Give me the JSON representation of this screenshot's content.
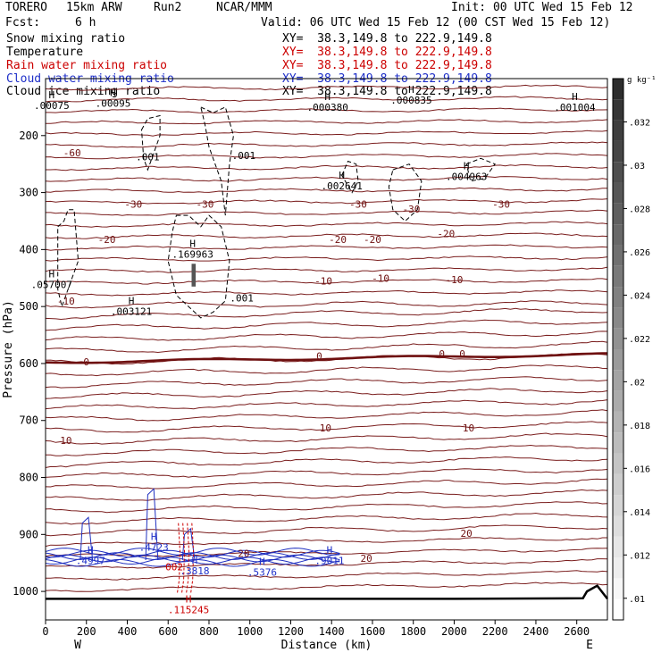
{
  "header": {
    "model": "TORERO",
    "resolution": "15km ARW",
    "run": "Run2",
    "org": "NCAR/MMM",
    "init": "Init: 00 UTC Wed 15 Feb 12",
    "fcst_label": "Fcst:",
    "fcst_value": "6 h",
    "valid": "Valid: 06 UTC Wed 15 Feb 12 (00 CST Wed 15 Feb 12)"
  },
  "fields": [
    {
      "label": "Snow mixing ratio",
      "color": "#000000",
      "xy": "XY=  38.3,149.8 to 222.9,149.8"
    },
    {
      "label": "Temperature",
      "color": "#cc0000",
      "xy": "XY=  38.3,149.8 to 222.9,149.8"
    },
    {
      "label": "Rain water mixing ratio",
      "color": "#cc0000",
      "xy": "XY=  38.3,149.8 to 222.9,149.8"
    },
    {
      "label": "Cloud water mixing ratio",
      "color": "#1e2fc8",
      "xy": "XY=  38.3,149.8 to 222.9,149.8"
    },
    {
      "label": "Cloud ice mixing ratio",
      "color": "#000000",
      "xy": "XY=  38.3,149.8 to 222.9,149.8"
    }
  ],
  "colorbar": {
    "unit": "g kg⁻¹",
    "ticks": [
      ".01",
      ".012",
      ".014",
      ".016",
      ".018",
      ".02",
      ".022",
      ".024",
      ".026",
      ".028",
      ".03",
      ".032"
    ],
    "values": [
      0.01,
      0.012,
      0.014,
      0.016,
      0.018,
      0.02,
      0.022,
      0.024,
      0.026,
      0.028,
      0.03,
      0.032
    ],
    "range": [
      0.009,
      0.034
    ]
  },
  "chart_data": {
    "type": "contour cross-section",
    "xlabel": "Distance (km)",
    "ylabel": "Pressure (hPa)",
    "xlim": [
      0,
      2750
    ],
    "x_ticks": [
      0,
      200,
      400,
      600,
      800,
      1000,
      1200,
      1400,
      1600,
      1800,
      2000,
      2200,
      2400,
      2600
    ],
    "ylim": [
      100,
      1050
    ],
    "y_ticks": [
      200,
      300,
      400,
      500,
      600,
      700,
      800,
      900,
      1000
    ],
    "y_tick_labels": [
      "200",
      "300",
      "400",
      "500",
      "600",
      "700",
      "800",
      "900",
      "1000"
    ],
    "y_scale": "linear",
    "x_ends": {
      "left": "W",
      "right": "E"
    },
    "temperature_contour_labels": [
      {
        "label": "-60",
        "x": 130,
        "p": 230
      },
      {
        "label": "-30",
        "x": 430,
        "p": 320
      },
      {
        "label": "-30",
        "x": 1530,
        "p": 320
      },
      {
        "label": "-30",
        "x": 1790,
        "p": 329
      },
      {
        "label": "-30",
        "x": 2230,
        "p": 320
      },
      {
        "label": "-30",
        "x": 780,
        "p": 320
      },
      {
        "label": "-20",
        "x": 300,
        "p": 382
      },
      {
        "label": "-20",
        "x": 1430,
        "p": 382
      },
      {
        "label": "-20",
        "x": 1600,
        "p": 382
      },
      {
        "label": "-20",
        "x": 1960,
        "p": 372
      },
      {
        "label": "-10",
        "x": 100,
        "p": 490
      },
      {
        "label": "-10",
        "x": 1360,
        "p": 455
      },
      {
        "label": "-10",
        "x": 1640,
        "p": 450
      },
      {
        "label": "-10",
        "x": 2000,
        "p": 453
      },
      {
        "label": "0",
        "x": 200,
        "p": 597
      },
      {
        "label": "0",
        "x": 1340,
        "p": 587
      },
      {
        "label": "0",
        "x": 1940,
        "p": 583
      },
      {
        "label": "0",
        "x": 2040,
        "p": 583
      },
      {
        "label": "10",
        "x": 100,
        "p": 735
      },
      {
        "label": "10",
        "x": 1370,
        "p": 713
      },
      {
        "label": "10",
        "x": 2070,
        "p": 713
      },
      {
        "label": "20",
        "x": 2060,
        "p": 898
      },
      {
        "label": "20",
        "x": 1570,
        "p": 942
      },
      {
        "label": "20",
        "x": 970,
        "p": 933
      }
    ],
    "maxima_labels": [
      {
        "label": "H",
        "value": ".00075",
        "x": 30,
        "p": 147,
        "field": "snow"
      },
      {
        "label": "H",
        "value": ".00095",
        "x": 330,
        "p": 143,
        "field": "snow"
      },
      {
        "label": "H",
        "value": ".000380",
        "x": 1380,
        "p": 150,
        "field": "snow"
      },
      {
        "label": "H",
        "value": ".000835",
        "x": 1790,
        "p": 138,
        "field": "snow"
      },
      {
        "label": "H",
        "value": ".001004",
        "x": 2590,
        "p": 150,
        "field": "snow"
      },
      {
        "label": "H",
        "value": ".002641",
        "x": 1450,
        "p": 288,
        "field": "snow"
      },
      {
        "label": "H",
        "value": ".004963",
        "x": 2060,
        "p": 272,
        "field": "snow"
      },
      {
        "label": "H",
        "value": ".169963",
        "x": 720,
        "p": 408,
        "field": "snow"
      },
      {
        "label": "H",
        "value": ".057007",
        "x": 30,
        "p": 461,
        "field": "snow"
      },
      {
        "label": "H",
        "value": ".003121",
        "x": 420,
        "p": 508,
        "field": "snow"
      },
      {
        "label": "",
        "value": ".001",
        "x": 500,
        "p": 237,
        "field": "snow"
      },
      {
        "label": "",
        "value": ".001",
        "x": 970,
        "p": 235,
        "field": "snow"
      },
      {
        "label": "",
        "value": ".001",
        "x": 960,
        "p": 485,
        "field": "snow"
      },
      {
        "label": "H",
        "value": ".4723",
        "x": 530,
        "p": 922,
        "field": "cloud water"
      },
      {
        "label": "H",
        "value": ".4997",
        "x": 220,
        "p": 946,
        "field": "cloud water"
      },
      {
        "label": "H",
        "value": ".3818",
        "x": 730,
        "p": 964,
        "field": "cloud water"
      },
      {
        "label": "H",
        "value": ".5376",
        "x": 1060,
        "p": 966,
        "field": "cloud water"
      },
      {
        "label": "H",
        "value": ".9011",
        "x": 1390,
        "p": 946,
        "field": "cloud water"
      },
      {
        "label": "",
        "value": "002",
        "x": 630,
        "p": 957,
        "field": "rain"
      },
      {
        "label": "H",
        "value": ".115245",
        "x": 700,
        "p": 1032,
        "field": "rain"
      }
    ],
    "surface_pressure_hPa": [
      [
        0,
        1013
      ],
      [
        1000,
        1013
      ],
      [
        2000,
        1013
      ],
      [
        2630,
        1012
      ],
      [
        2650,
        1000
      ],
      [
        2700,
        990
      ],
      [
        2750,
        1013
      ]
    ]
  }
}
